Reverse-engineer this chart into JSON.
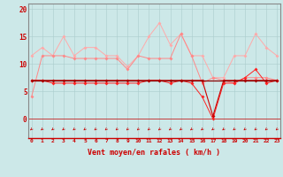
{
  "x": [
    0,
    1,
    2,
    3,
    4,
    5,
    6,
    7,
    8,
    9,
    10,
    11,
    12,
    13,
    14,
    15,
    16,
    17,
    18,
    19,
    20,
    21,
    22,
    23
  ],
  "series1": [
    11.5,
    13.0,
    11.5,
    15.0,
    11.5,
    13.0,
    13.0,
    11.5,
    11.5,
    9.5,
    11.5,
    15.0,
    17.5,
    13.5,
    15.5,
    11.5,
    11.5,
    7.5,
    7.5,
    11.5,
    11.5,
    15.5,
    13.0,
    11.5
  ],
  "series2": [
    4.0,
    11.5,
    11.5,
    11.5,
    11.0,
    11.0,
    11.0,
    11.0,
    11.0,
    9.0,
    11.5,
    11.0,
    11.0,
    11.0,
    15.5,
    11.5,
    6.5,
    7.5,
    7.0,
    6.5,
    7.5,
    7.5,
    7.5,
    7.0
  ],
  "series3": [
    7.0,
    7.0,
    6.5,
    6.5,
    6.5,
    6.5,
    6.5,
    6.5,
    6.5,
    6.5,
    6.5,
    7.0,
    7.0,
    6.5,
    7.0,
    6.5,
    4.0,
    0.0,
    6.5,
    6.5,
    7.5,
    9.0,
    6.5,
    7.0
  ],
  "series4": [
    7.0,
    7.0,
    7.0,
    7.0,
    7.0,
    7.0,
    7.0,
    7.0,
    7.0,
    7.0,
    7.0,
    7.0,
    7.0,
    7.0,
    7.0,
    7.0,
    7.0,
    0.5,
    7.0,
    7.0,
    7.0,
    7.0,
    7.0,
    7.0
  ],
  "series5_const": 7.0,
  "bg_color": "#cce8e8",
  "grid_color": "#aacccc",
  "line_color1": "#ffaaaa",
  "line_color2": "#ff8888",
  "line_color3": "#ff2222",
  "line_color4": "#cc0000",
  "line_color5": "#880000",
  "xlabel": "Vent moyen/en rafales ( km/h )",
  "xlabel_color": "#cc0000",
  "yticks": [
    0,
    5,
    10,
    15,
    20
  ],
  "xtick_labels": [
    "0",
    "1",
    "2",
    "3",
    "4",
    "5",
    "6",
    "7",
    "8",
    "9",
    "10",
    "11",
    "12",
    "13",
    "14",
    "15",
    "16",
    "17",
    "18",
    "19",
    "20",
    "21",
    "22",
    "23"
  ],
  "ylim": [
    -3.5,
    21
  ],
  "xlim": [
    -0.3,
    23.3
  ],
  "marker": "D",
  "markersize": 2.0,
  "tick_color": "#cc0000"
}
